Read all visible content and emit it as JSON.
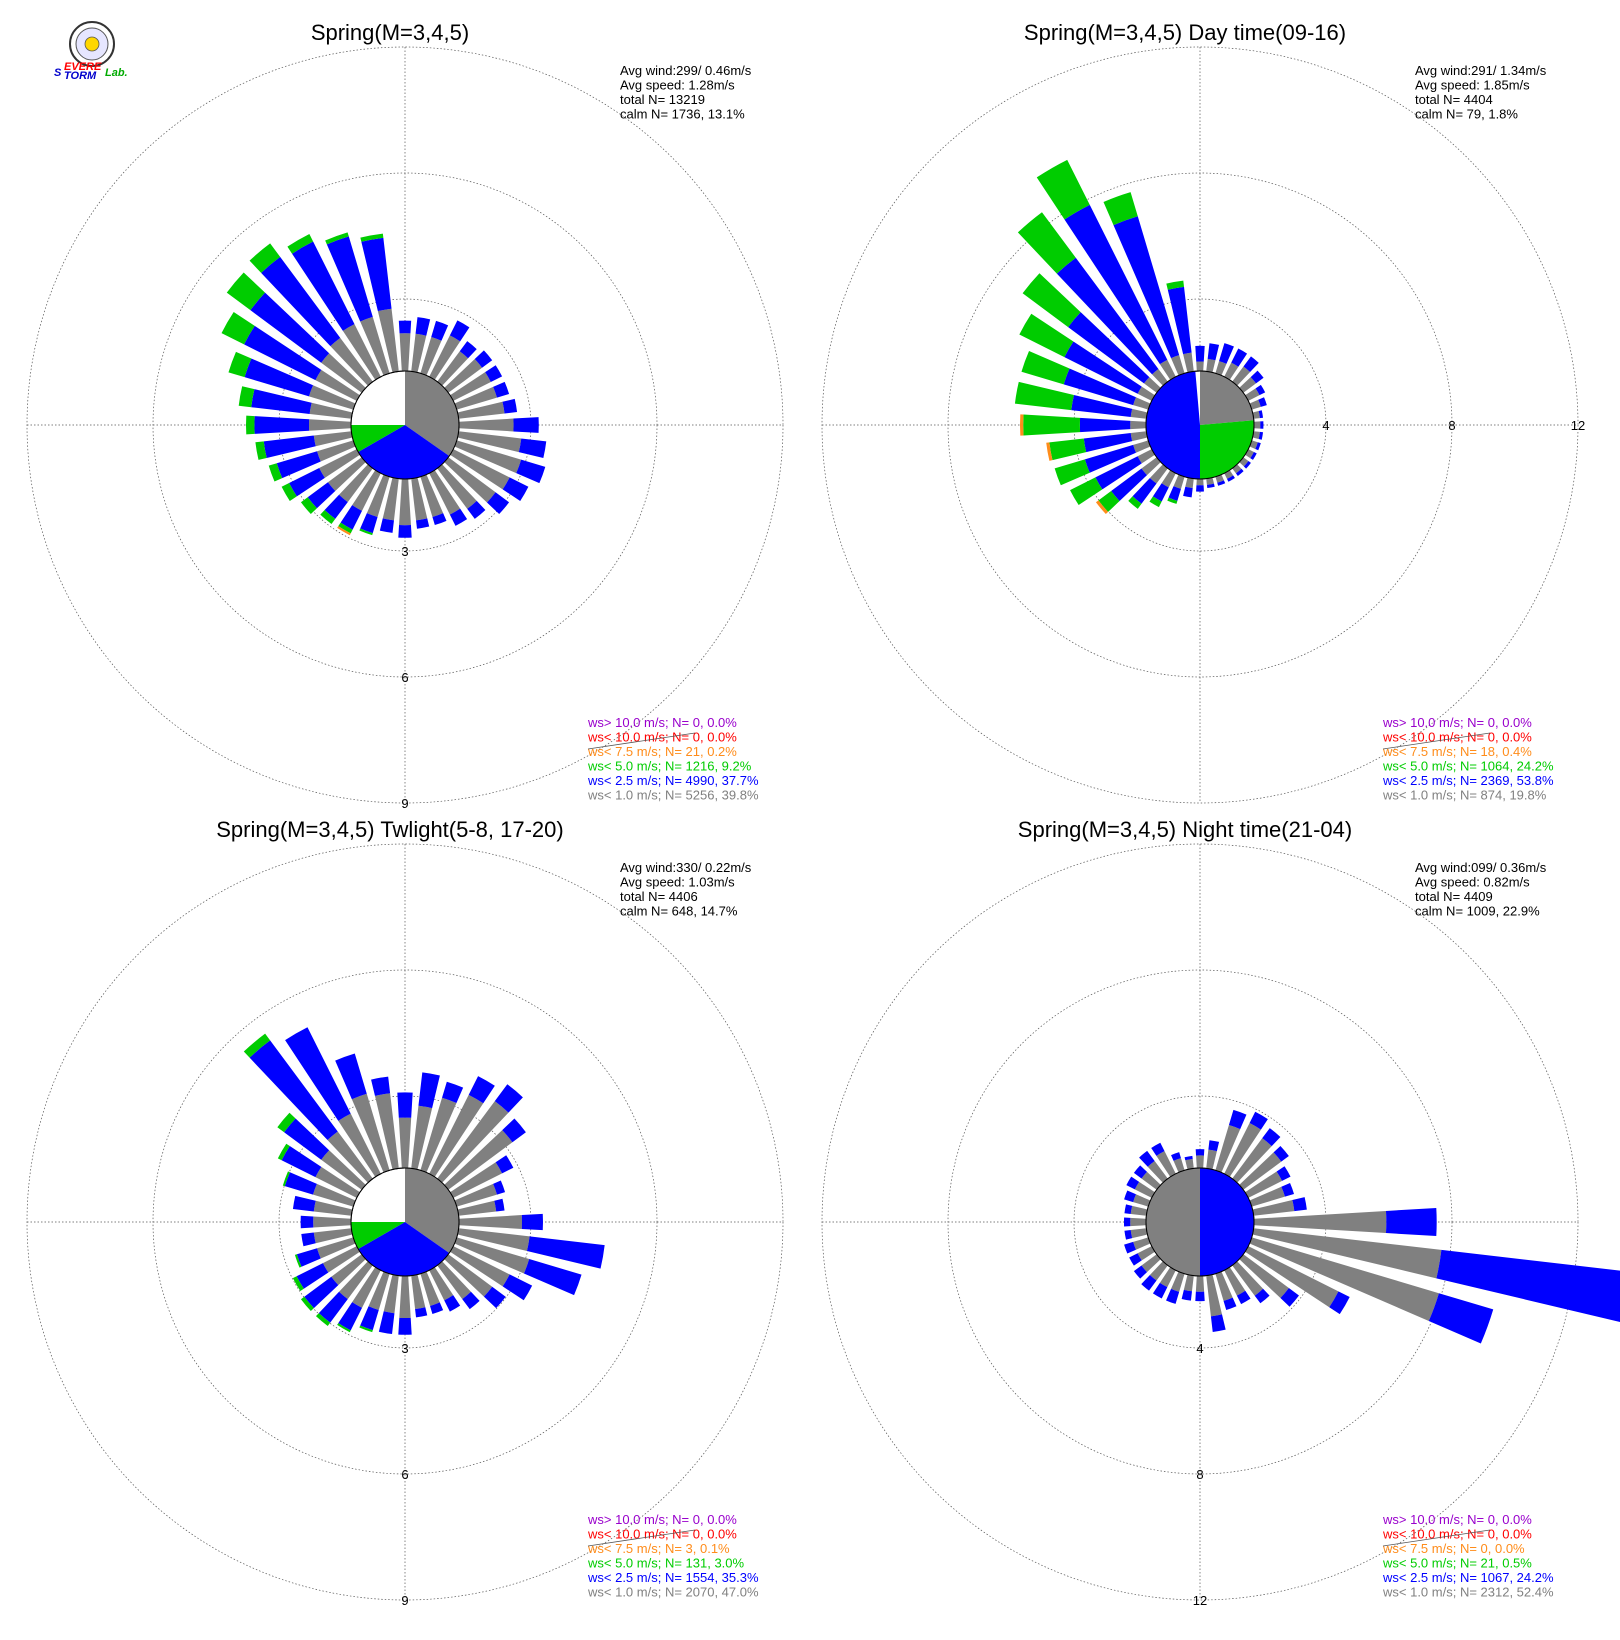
{
  "logo": {
    "text_a": "S",
    "text_b": "EVERE",
    "text_c": "TORM",
    "text_d": "Lab.",
    "icon": "lab-seal-icon"
  },
  "colors": {
    "calm": "#808080",
    "gray": "#808080",
    "blue": "#0000ff",
    "green": "#00cc00",
    "orange": "#ff8c1a",
    "red": "#ff0000",
    "purple": "#9900cc",
    "grid": "#555555"
  },
  "panels": [
    {
      "title": "Spring(M=3,4,5)",
      "stats": [
        "Avg wind:299/ 0.46m/s",
        "Avg speed: 1.28m/s",
        "total N=       13219",
        "calm N=   1736,  13.1%"
      ],
      "ring_labels": [
        "3",
        "6",
        "9"
      ],
      "legend": [
        {
          "text": "ws> 10.0 m/s; N=      0,  0.0%",
          "color": "#9900cc"
        },
        {
          "text": "ws< 10.0 m/s; N=      0,  0.0%",
          "color": "#ff0000"
        },
        {
          "text": "ws<  7.5 m/s; N=     21,  0.2%",
          "color": "#ff8c1a"
        },
        {
          "text": "ws<  5.0 m/s; N=   1216,  9.2%",
          "color": "#00cc00"
        },
        {
          "text": "ws<  2.5 m/s; N=   4990, 37.7%",
          "color": "#0000ff"
        },
        {
          "text": "ws<  1.0 m/s; N=   5256, 39.8%",
          "color": "#808080"
        }
      ]
    },
    {
      "title": "Spring(M=3,4,5) Day time(09-16)",
      "stats": [
        "Avg wind:291/ 1.34m/s",
        "Avg speed: 1.85m/s",
        "total N=        4404",
        "calm N=     79,   1.8%"
      ],
      "ring_labels": [
        "4",
        "8",
        "12"
      ],
      "legend": [
        {
          "text": "ws> 10.0 m/s; N=      0,  0.0%",
          "color": "#9900cc"
        },
        {
          "text": "ws< 10.0 m/s; N=      0,  0.0%",
          "color": "#ff0000"
        },
        {
          "text": "ws<  7.5 m/s; N=     18,  0.4%",
          "color": "#ff8c1a"
        },
        {
          "text": "ws<  5.0 m/s; N=   1064, 24.2%",
          "color": "#00cc00"
        },
        {
          "text": "ws<  2.5 m/s; N=   2369, 53.8%",
          "color": "#0000ff"
        },
        {
          "text": "ws<  1.0 m/s; N=    874, 19.8%",
          "color": "#808080"
        }
      ]
    },
    {
      "title": "Spring(M=3,4,5) Twlight(5-8, 17-20)",
      "stats": [
        "Avg wind:330/ 0.22m/s",
        "Avg speed: 1.03m/s",
        "total N=        4406",
        "calm N=    648,  14.7%"
      ],
      "ring_labels": [
        "3",
        "6",
        "9"
      ],
      "legend": [
        {
          "text": "ws> 10.0 m/s; N=      0,  0.0%",
          "color": "#9900cc"
        },
        {
          "text": "ws< 10.0 m/s; N=      0,  0.0%",
          "color": "#ff0000"
        },
        {
          "text": "ws<  7.5 m/s; N=      3,  0.1%",
          "color": "#ff8c1a"
        },
        {
          "text": "ws<  5.0 m/s; N=    131,  3.0%",
          "color": "#00cc00"
        },
        {
          "text": "ws<  2.5 m/s; N=   1554, 35.3%",
          "color": "#0000ff"
        },
        {
          "text": "ws<  1.0 m/s; N=   2070, 47.0%",
          "color": "#808080"
        }
      ]
    },
    {
      "title": "Spring(M=3,4,5) Night time(21-04)",
      "stats": [
        "Avg wind:099/ 0.36m/s",
        "Avg speed: 0.82m/s",
        "total N=        4409",
        "calm N=   1009,  22.9%"
      ],
      "ring_labels": [
        "4",
        "8",
        "12"
      ],
      "legend": [
        {
          "text": "ws> 10.0 m/s; N=      0,  0.0%",
          "color": "#9900cc"
        },
        {
          "text": "ws< 10.0 m/s; N=      0,  0.0%",
          "color": "#ff0000"
        },
        {
          "text": "ws<  7.5 m/s; N=      0,  0.0%",
          "color": "#ff8c1a"
        },
        {
          "text": "ws<  5.0 m/s; N=     21,  0.5%",
          "color": "#00cc00"
        },
        {
          "text": "ws<  2.5 m/s; N=   1067, 24.2%",
          "color": "#0000ff"
        },
        {
          "text": "ws<  1.0 m/s; N=   2312, 52.4%",
          "color": "#808080"
        }
      ]
    }
  ],
  "chart_data": [
    {
      "type": "wind-rose",
      "title": "Spring(M=3,4,5)",
      "rlim": [
        0,
        9
      ],
      "rticks": [
        3,
        6,
        9
      ],
      "directions_deg": [
        0,
        10,
        20,
        30,
        40,
        50,
        60,
        70,
        80,
        90,
        100,
        110,
        120,
        130,
        140,
        150,
        160,
        170,
        180,
        190,
        200,
        210,
        220,
        230,
        240,
        250,
        260,
        270,
        280,
        290,
        300,
        310,
        320,
        330,
        340,
        350
      ],
      "pie": [
        {
          "start": 0,
          "end": 125,
          "class": "calm"
        },
        {
          "start": 125,
          "end": 240,
          "class": "blue"
        },
        {
          "start": 240,
          "end": 270,
          "class": "green"
        }
      ],
      "bars": [
        [
          0.9,
          0.3,
          0,
          0
        ],
        [
          0.9,
          0.4,
          0,
          0
        ],
        [
          0.9,
          0.4,
          0,
          0
        ],
        [
          1.1,
          0.4,
          0,
          0
        ],
        [
          0.9,
          0.3,
          0,
          0
        ],
        [
          1.0,
          0.3,
          0,
          0
        ],
        [
          1.0,
          0.3,
          0,
          0
        ],
        [
          1.0,
          0.3,
          0,
          0
        ],
        [
          1.1,
          0.3,
          0,
          0
        ],
        [
          1.3,
          0.6,
          0,
          0
        ],
        [
          1.5,
          0.6,
          0,
          0
        ],
        [
          1.6,
          0.6,
          0,
          0
        ],
        [
          1.5,
          0.5,
          0,
          0
        ],
        [
          1.4,
          0.4,
          0,
          0
        ],
        [
          1.2,
          0.3,
          0,
          0
        ],
        [
          1.1,
          0.3,
          0,
          0
        ],
        [
          1.0,
          0.2,
          0,
          0
        ],
        [
          1.0,
          0.2,
          0,
          0
        ],
        [
          1.1,
          0.3,
          0,
          0
        ],
        [
          1.0,
          0.3,
          0,
          0
        ],
        [
          1.0,
          0.4,
          0.05,
          0
        ],
        [
          1.0,
          0.5,
          0.1,
          0.05
        ],
        [
          1.0,
          0.5,
          0.15,
          0
        ],
        [
          1.0,
          0.6,
          0.2,
          0
        ],
        [
          1.0,
          0.8,
          0.2,
          0
        ],
        [
          0.9,
          1.0,
          0.2,
          0
        ],
        [
          0.9,
          1.2,
          0.2,
          0
        ],
        [
          1.0,
          1.3,
          0.2,
          0
        ],
        [
          1.0,
          1.4,
          0.3,
          0
        ],
        [
          1.1,
          1.6,
          0.4,
          0
        ],
        [
          1.1,
          1.9,
          0.6,
          0
        ],
        [
          1.2,
          2.1,
          0.7,
          0
        ],
        [
          1.3,
          2.4,
          0.4,
          0
        ],
        [
          1.4,
          2.2,
          0.2,
          0
        ],
        [
          1.4,
          2.0,
          0.1,
          0
        ],
        [
          1.5,
          1.7,
          0.1,
          0
        ]
      ]
    },
    {
      "type": "wind-rose",
      "title": "Spring(M=3,4,5) Day time(09-16)",
      "rlim": [
        0,
        12
      ],
      "rticks": [
        4,
        8,
        12
      ],
      "directions_deg": [
        0,
        10,
        20,
        30,
        40,
        50,
        60,
        70,
        80,
        90,
        100,
        110,
        120,
        130,
        140,
        150,
        160,
        170,
        180,
        190,
        200,
        210,
        220,
        230,
        240,
        250,
        260,
        270,
        280,
        290,
        300,
        310,
        320,
        330,
        340,
        350
      ],
      "pie": [
        {
          "start": 0,
          "end": 85,
          "class": "calm"
        },
        {
          "start": 85,
          "end": 180,
          "class": "green"
        },
        {
          "start": 180,
          "end": 355,
          "class": "blue"
        }
      ],
      "bars": [
        [
          0.3,
          0.5,
          0,
          0
        ],
        [
          0.4,
          0.5,
          0,
          0
        ],
        [
          0.4,
          0.6,
          0,
          0
        ],
        [
          0.5,
          0.5,
          0,
          0
        ],
        [
          0.6,
          0.4,
          0,
          0
        ],
        [
          0.5,
          0.3,
          0,
          0
        ],
        [
          0.4,
          0.2,
          0,
          0
        ],
        [
          0.3,
          0.2,
          0,
          0
        ],
        [
          0.2,
          0.1,
          0,
          0
        ],
        [
          0.2,
          0.1,
          0,
          0
        ],
        [
          0.2,
          0.1,
          0,
          0
        ],
        [
          0.2,
          0.1,
          0,
          0
        ],
        [
          0.2,
          0.1,
          0,
          0
        ],
        [
          0.2,
          0.1,
          0,
          0
        ],
        [
          0.2,
          0.1,
          0,
          0
        ],
        [
          0.2,
          0.1,
          0,
          0
        ],
        [
          0.2,
          0.1,
          0,
          0
        ],
        [
          0.2,
          0.1,
          0,
          0
        ],
        [
          0.2,
          0.2,
          0,
          0
        ],
        [
          0.3,
          0.3,
          0,
          0
        ],
        [
          0.4,
          0.4,
          0.1,
          0
        ],
        [
          0.5,
          0.5,
          0.2,
          0
        ],
        [
          0.6,
          0.8,
          0.2,
          0
        ],
        [
          0.6,
          1.2,
          0.5,
          0.1
        ],
        [
          0.5,
          1.5,
          0.9,
          0
        ],
        [
          0.5,
          1.6,
          1.0,
          0
        ],
        [
          0.5,
          1.5,
          1.1,
          0.1
        ],
        [
          0.5,
          1.6,
          1.8,
          0.1
        ],
        [
          0.5,
          1.9,
          1.8,
          0
        ],
        [
          0.5,
          2.3,
          1.4,
          0
        ],
        [
          0.5,
          2.6,
          1.6,
          0
        ],
        [
          0.5,
          3.0,
          1.8,
          0
        ],
        [
          0.5,
          4.4,
          1.8,
          0
        ],
        [
          0.6,
          5.5,
          1.6,
          0
        ],
        [
          0.6,
          4.6,
          0.8,
          0
        ],
        [
          0.6,
          2.1,
          0.2,
          0
        ]
      ]
    },
    {
      "type": "wind-rose",
      "title": "Spring(M=3,4,5) Twlight(5-8, 17-20)",
      "rlim": [
        0,
        9
      ],
      "rticks": [
        3,
        6,
        9
      ],
      "directions_deg": [
        0,
        10,
        20,
        30,
        40,
        50,
        60,
        70,
        80,
        90,
        100,
        110,
        120,
        130,
        140,
        150,
        160,
        170,
        180,
        190,
        200,
        210,
        220,
        230,
        240,
        250,
        260,
        270,
        280,
        290,
        300,
        310,
        320,
        330,
        340,
        350
      ],
      "pie": [
        {
          "start": 0,
          "end": 125,
          "class": "calm"
        },
        {
          "start": 125,
          "end": 240,
          "class": "blue"
        },
        {
          "start": 240,
          "end": 270,
          "class": "green"
        }
      ],
      "bars": [
        [
          1.2,
          0.6,
          0,
          0
        ],
        [
          1.5,
          0.8,
          0,
          0
        ],
        [
          1.8,
          0.4,
          0,
          0
        ],
        [
          2.1,
          0.5,
          0,
          0
        ],
        [
          2.3,
          0.5,
          0,
          0
        ],
        [
          1.9,
          0.4,
          0,
          0
        ],
        [
          1.3,
          0.3,
          0,
          0
        ],
        [
          1.0,
          0.2,
          0,
          0
        ],
        [
          0.9,
          0.2,
          0,
          0
        ],
        [
          1.5,
          0.5,
          0,
          0
        ],
        [
          1.7,
          1.8,
          0,
          0
        ],
        [
          1.8,
          1.3,
          0,
          0
        ],
        [
          1.5,
          0.6,
          0,
          0
        ],
        [
          1.3,
          0.4,
          0,
          0
        ],
        [
          1.0,
          0.3,
          0,
          0
        ],
        [
          0.8,
          0.3,
          0,
          0
        ],
        [
          0.8,
          0.2,
          0,
          0
        ],
        [
          0.8,
          0.2,
          0,
          0
        ],
        [
          1.0,
          0.4,
          0,
          0
        ],
        [
          0.9,
          0.5,
          0,
          0
        ],
        [
          0.9,
          0.5,
          0.05,
          0
        ],
        [
          1.0,
          0.6,
          0.05,
          0
        ],
        [
          1.0,
          0.7,
          0.1,
          0
        ],
        [
          0.9,
          0.8,
          0.1,
          0
        ],
        [
          0.9,
          0.7,
          0.1,
          0
        ],
        [
          0.9,
          0.5,
          0.05,
          0
        ],
        [
          0.9,
          0.3,
          0,
          0
        ],
        [
          0.9,
          0.3,
          0,
          0
        ],
        [
          0.9,
          0.5,
          0,
          0
        ],
        [
          1.0,
          0.7,
          0.05,
          0
        ],
        [
          1.1,
          0.9,
          0.1,
          0
        ],
        [
          1.2,
          1.1,
          0.2,
          0
        ],
        [
          1.4,
          2.7,
          0.2,
          0
        ],
        [
          1.6,
          2.3,
          0,
          0
        ],
        [
          1.9,
          1.0,
          0,
          0
        ],
        [
          1.8,
          0.4,
          0,
          0
        ]
      ]
    },
    {
      "type": "wind-rose",
      "title": "Spring(M=3,4,5) Night time(21-04)",
      "rlim": [
        0,
        12
      ],
      "rticks": [
        4,
        8,
        12
      ],
      "directions_deg": [
        0,
        10,
        20,
        30,
        40,
        50,
        60,
        70,
        80,
        90,
        100,
        110,
        120,
        130,
        140,
        150,
        160,
        170,
        180,
        190,
        200,
        210,
        220,
        230,
        240,
        250,
        260,
        270,
        280,
        290,
        300,
        310,
        320,
        330,
        340,
        350
      ],
      "pie": [
        {
          "start": 0,
          "end": 180,
          "class": "blue"
        },
        {
          "start": 180,
          "end": 360,
          "class": "calm"
        }
      ],
      "bars": [
        [
          0.4,
          0.2,
          0,
          0
        ],
        [
          0.6,
          0.3,
          0,
          0
        ],
        [
          1.5,
          0.5,
          0,
          0
        ],
        [
          1.8,
          0.4,
          0,
          0
        ],
        [
          1.6,
          0.4,
          0,
          0
        ],
        [
          1.5,
          0.3,
          0,
          0
        ],
        [
          1.2,
          0.3,
          0,
          0
        ],
        [
          1.1,
          0.3,
          0,
          0
        ],
        [
          1.3,
          0.4,
          0,
          0
        ],
        [
          4.2,
          1.6,
          0,
          0
        ],
        [
          6.0,
          6.0,
          0,
          0
        ],
        [
          6.2,
          1.8,
          0,
          0
        ],
        [
          3.2,
          0.4,
          0,
          0
        ],
        [
          1.8,
          0.4,
          0,
          0
        ],
        [
          1.2,
          0.3,
          0,
          0
        ],
        [
          0.9,
          0.3,
          0,
          0
        ],
        [
          0.9,
          0.3,
          0,
          0
        ],
        [
          1.3,
          0.5,
          0,
          0
        ],
        [
          0.5,
          0.3,
          0,
          0
        ],
        [
          0.5,
          0.3,
          0,
          0
        ],
        [
          0.6,
          0.4,
          0,
          0
        ],
        [
          0.6,
          0.4,
          0,
          0
        ],
        [
          0.6,
          0.4,
          0,
          0
        ],
        [
          0.6,
          0.3,
          0,
          0
        ],
        [
          0.5,
          0.3,
          0,
          0
        ],
        [
          0.5,
          0.3,
          0,
          0
        ],
        [
          0.5,
          0.2,
          0,
          0
        ],
        [
          0.5,
          0.2,
          0,
          0
        ],
        [
          0.5,
          0.2,
          0,
          0
        ],
        [
          0.5,
          0.3,
          0,
          0
        ],
        [
          0.6,
          0.3,
          0,
          0
        ],
        [
          0.6,
          0.3,
          0,
          0
        ],
        [
          0.7,
          0.4,
          0,
          0
        ],
        [
          0.8,
          0.3,
          0,
          0
        ],
        [
          0.4,
          0.2,
          0,
          0
        ],
        [
          0.3,
          0.1,
          0,
          0
        ]
      ]
    }
  ]
}
